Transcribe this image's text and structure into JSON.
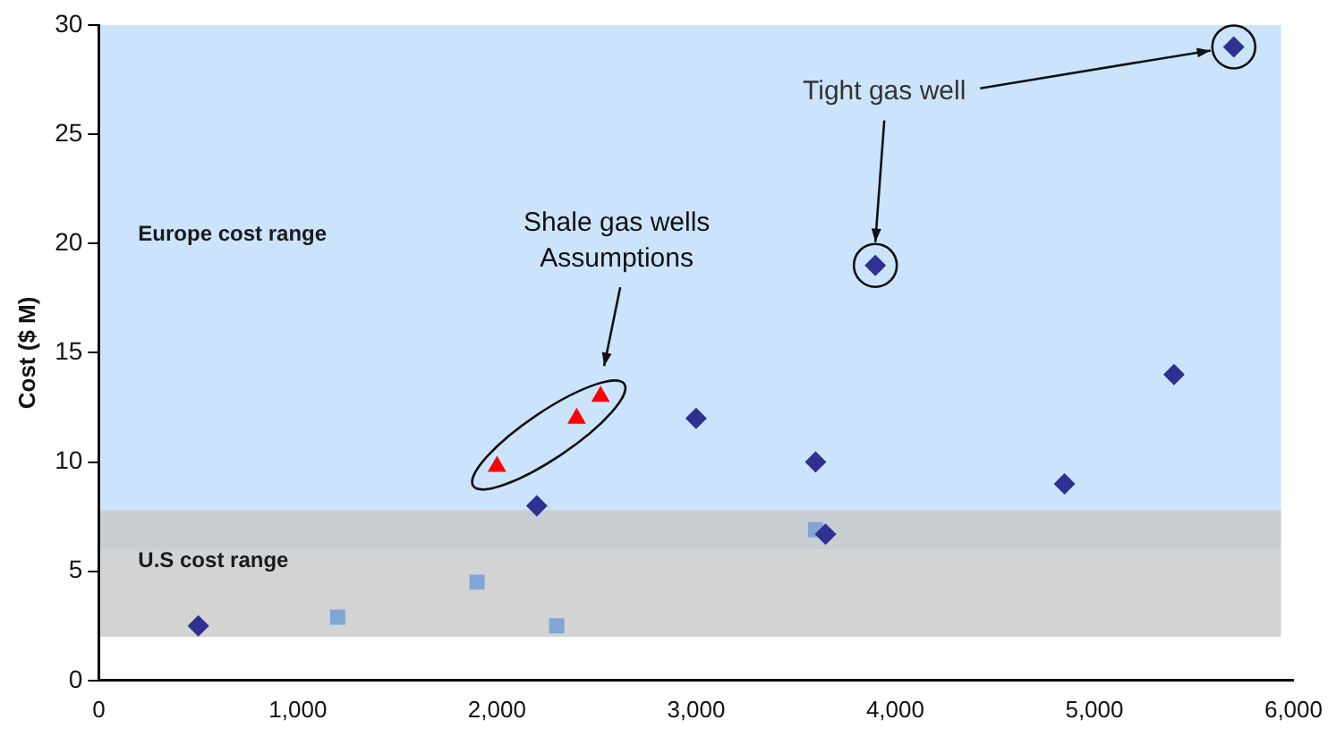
{
  "chart_data": {
    "type": "scatter",
    "ylabel": "Cost ($ M)",
    "series": [
      {
        "color": "#2e3192",
        "marker": "diamond",
        "x": [
          500,
          2200,
          3000,
          3600,
          3650,
          3900,
          4850,
          5400,
          5700
        ],
        "values": [
          2.5,
          8,
          12,
          10,
          6.7,
          19,
          9,
          14,
          29
        ]
      },
      {
        "color": "#ff0000",
        "marker": "triangle",
        "x": [
          2000,
          2400,
          2520
        ],
        "values": [
          9.8,
          12,
          13
        ]
      },
      {
        "color": "#7fa6d4",
        "marker": "square",
        "x": [
          1200,
          1900,
          2300,
          3600
        ],
        "values": [
          2.9,
          4.5,
          2.5,
          6.9
        ]
      }
    ],
    "xlim": [
      0,
      6000
    ],
    "xticks": [
      0,
      {
        "value": 1000,
        "label": "1,000"
      },
      {
        "value": 2000,
        "label": "2,000"
      },
      {
        "value": 3000,
        "label": "3,000"
      },
      {
        "value": 4000,
        "label": "4,000"
      },
      {
        "value": 5000,
        "label": "5,000"
      },
      {
        "value": 6000,
        "label": "6,000"
      }
    ],
    "ylim": [
      0,
      30
    ],
    "yticks": [
      0,
      5,
      10,
      15,
      20,
      25,
      30
    ],
    "bands": [
      {
        "axis": "y",
        "from": 6,
        "to": 30,
        "label": "Europe cost range",
        "color": "#cce4fb"
      },
      {
        "axis": "y",
        "from": 2,
        "to": 7.8,
        "label": "U.S cost range",
        "color": "#c8c8c8"
      }
    ],
    "annotations": [
      "Shale gas wells\nAssumptions",
      "Tight gas well"
    ],
    "grid": false,
    "legend": false
  }
}
